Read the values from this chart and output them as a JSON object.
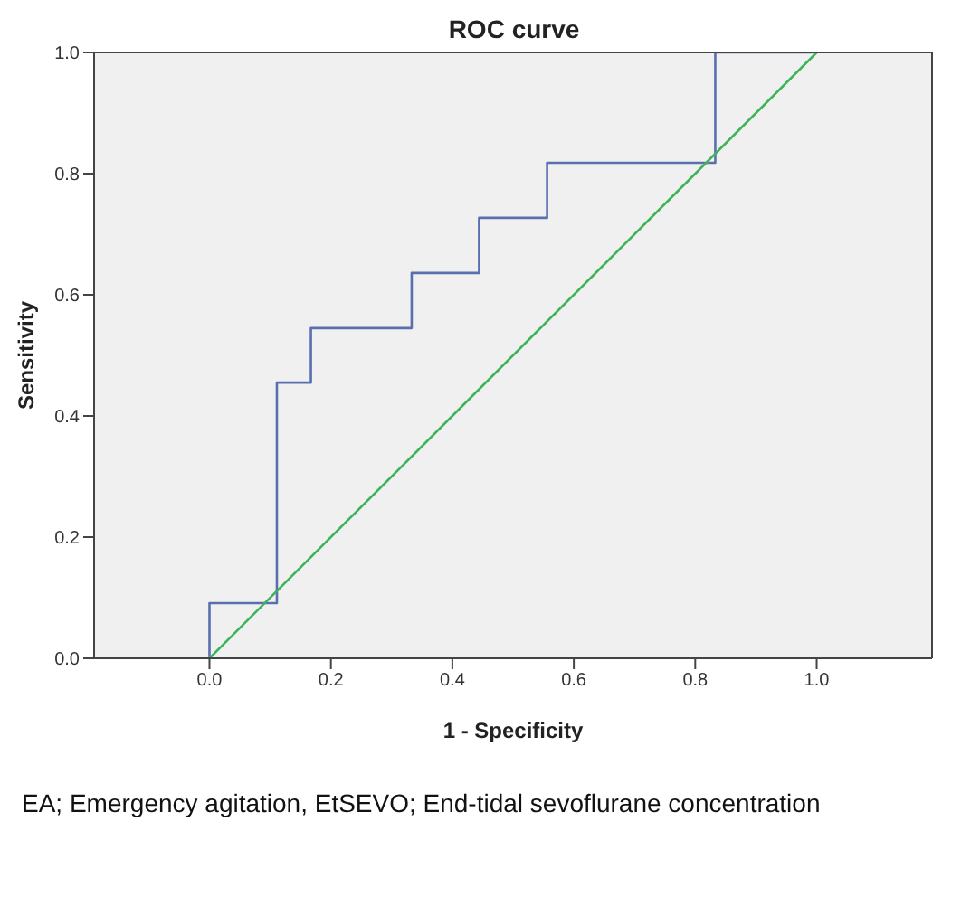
{
  "chart_data": {
    "type": "line",
    "title": "ROC curve",
    "xlabel": "1 - Specificity",
    "ylabel": "Sensitivity",
    "series": [
      {
        "color": "#5a6fb0",
        "x": [
          0,
          0,
          0.111,
          0.111,
          0.167,
          0.167,
          0.333,
          0.333,
          0.444,
          0.444,
          0.556,
          0.556,
          0.833,
          0.833,
          1
        ],
        "values": [
          0,
          0.091,
          0.091,
          0.455,
          0.455,
          0.545,
          0.545,
          0.636,
          0.636,
          0.727,
          0.727,
          0.818,
          0.818,
          1,
          1
        ]
      },
      {
        "color": "#3cb35a",
        "x": [
          0,
          1
        ],
        "values": [
          0,
          1
        ]
      }
    ],
    "xlim": [
      -0.19,
      1.19
    ],
    "ylim": [
      0,
      1
    ],
    "xticks": [
      {
        "value": 0,
        "label": "0.0"
      },
      {
        "value": 0.2,
        "label": "0.2"
      },
      {
        "value": 0.4,
        "label": "0.4"
      },
      {
        "value": 0.6,
        "label": "0.6"
      },
      {
        "value": 0.8,
        "label": "0.8"
      },
      {
        "value": 1,
        "label": "1.0"
      }
    ],
    "yticks": [
      {
        "value": 0,
        "label": "0.0"
      },
      {
        "value": 0.2,
        "label": "0.2"
      },
      {
        "value": 0.4,
        "label": "0.4"
      },
      {
        "value": 0.6,
        "label": "0.6"
      },
      {
        "value": 0.8,
        "label": "0.8"
      },
      {
        "value": 1,
        "label": "1.0"
      }
    ],
    "marker": "none",
    "line_style": "solid",
    "annotations": [
      "EA; Emergency agitation, EtSEVO; End-tidal sevoflurane concentration"
    ]
  }
}
